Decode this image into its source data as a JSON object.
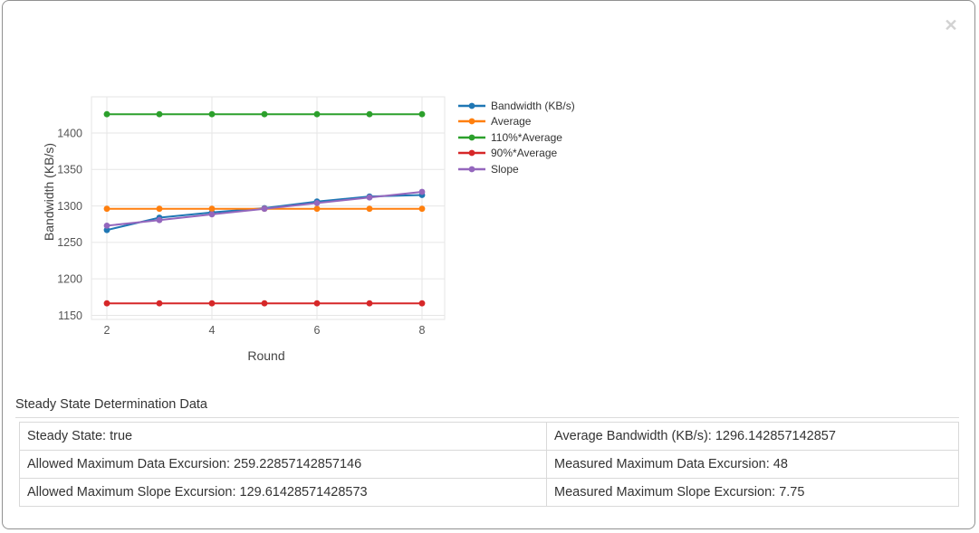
{
  "modal": {
    "close_label": "✕"
  },
  "chart_data": {
    "type": "line",
    "title": "",
    "xlabel": "Round",
    "ylabel": "Bandwidth (KB/s)",
    "x": [
      2,
      3,
      4,
      5,
      6,
      7,
      8
    ],
    "xticks": [
      2,
      4,
      6,
      8
    ],
    "yticks": [
      1150,
      1200,
      1250,
      1300,
      1350,
      1400
    ],
    "xlim": [
      1.707,
      8.431
    ],
    "ylim": [
      1144.4,
      1449.6
    ],
    "grid": true,
    "legend_position": "right-top",
    "series": [
      {
        "name": "Bandwidth (KB/s)",
        "color": "#1f77b4",
        "values": [
          1267,
          1284,
          1291,
          1297,
          1306,
          1313,
          1315
        ]
      },
      {
        "name": "Average",
        "color": "#ff7f0e",
        "values": [
          1296.142857142857,
          1296.142857142857,
          1296.142857142857,
          1296.142857142857,
          1296.142857142857,
          1296.142857142857,
          1296.142857142857
        ]
      },
      {
        "name": "110%*Average",
        "color": "#2ca02c",
        "values": [
          1425.757142857143,
          1425.757142857143,
          1425.757142857143,
          1425.757142857143,
          1425.757142857143,
          1425.757142857143,
          1425.757142857143
        ]
      },
      {
        "name": "90%*Average",
        "color": "#d62728",
        "values": [
          1166.528571428571,
          1166.528571428571,
          1166.528571428571,
          1166.528571428571,
          1166.528571428571,
          1166.528571428571,
          1166.528571428571
        ]
      },
      {
        "name": "Slope",
        "color": "#9467bd",
        "values": [
          1272.89,
          1280.64,
          1288.39,
          1296.14,
          1303.89,
          1311.64,
          1319.39
        ]
      }
    ]
  },
  "table": {
    "title": "Steady State Determination Data",
    "rows": [
      {
        "left": "Steady State: true",
        "right": "Average Bandwidth (KB/s): 1296.142857142857"
      },
      {
        "left": "Allowed Maximum Data Excursion: 259.22857142857146",
        "right": "Measured Maximum Data Excursion: 48"
      },
      {
        "left": "Allowed Maximum Slope Excursion: 129.61428571428573",
        "right": "Measured Maximum Slope Excursion: 7.75"
      }
    ]
  },
  "style_colors": {
    "grid": "#e6e6e6",
    "tick_text": "#555555",
    "axis_title_text": "#444444",
    "table_border": "#d9d9d9",
    "modal_border": "#919191",
    "close_icon": "#d2d2d2"
  }
}
